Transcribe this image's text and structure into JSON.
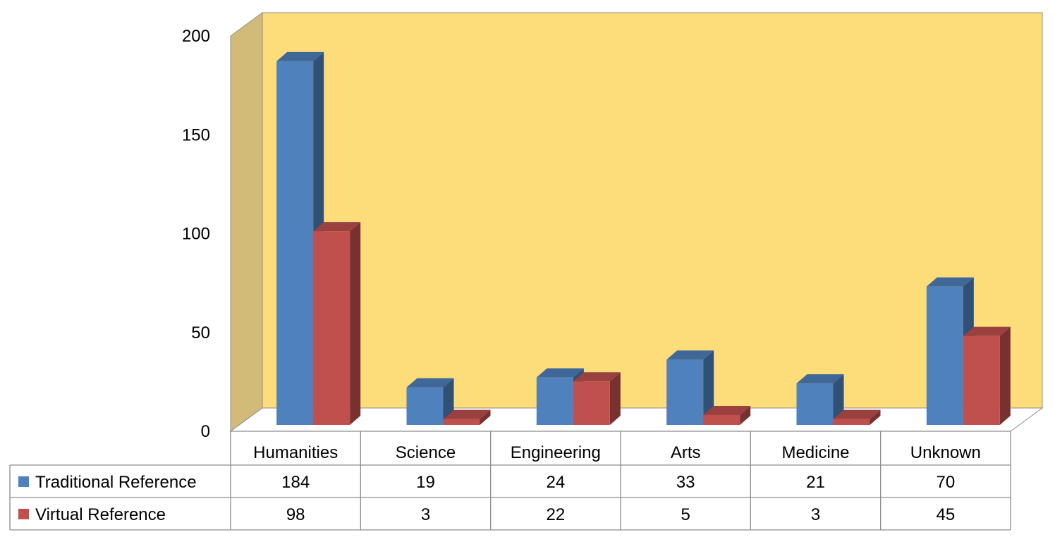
{
  "chart_data": {
    "type": "bar",
    "categories": [
      "Humanities",
      "Science",
      "Engineering",
      "Arts",
      "Medicine",
      "Unknown"
    ],
    "series": [
      {
        "name": "Traditional Reference",
        "values": [
          184,
          19,
          24,
          33,
          21,
          70
        ],
        "color": "#4f81bd"
      },
      {
        "name": "Virtual Reference",
        "values": [
          98,
          3,
          22,
          5,
          3,
          45
        ],
        "color": "#c0504d"
      }
    ],
    "y_ticks": [
      "0",
      "50",
      "100",
      "150",
      "200"
    ],
    "ylim": [
      0,
      200
    ],
    "data_table": true,
    "legend": "in data table",
    "wall_color": "#fddc7a",
    "side_wall_color": "#d2bb79"
  }
}
